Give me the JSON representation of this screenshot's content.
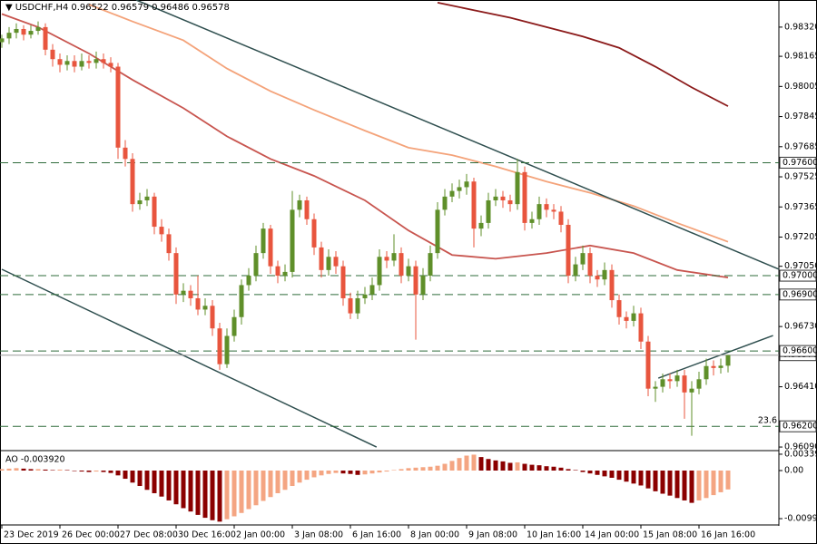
{
  "chart_data": [
    {
      "type": "candlestick",
      "title": "USDCHF,H4",
      "bull_color": "#5f8f2a",
      "bear_color": "#e8553e",
      "xlim": [
        -0.25,
        107
      ],
      "xticks": [
        {
          "value": 0,
          "label": "23 Dec 2019"
        },
        {
          "value": 8,
          "label": "26 Dec 00:00"
        },
        {
          "value": 16,
          "label": "27 Dec 08:00"
        },
        {
          "value": 24,
          "label": "30 Dec 16:00"
        },
        {
          "value": 32,
          "label": "2 Jan 00:00"
        },
        {
          "value": 40,
          "label": "3 Jan 08:00"
        },
        {
          "value": 48,
          "label": "6 Jan 16:00"
        },
        {
          "value": 56,
          "label": "8 Jan 00:00"
        },
        {
          "value": 64,
          "label": "9 Jan 08:00"
        },
        {
          "value": 72,
          "label": "10 Jan 16:00"
        },
        {
          "value": 80,
          "label": "14 Jan 00:00"
        },
        {
          "value": 88,
          "label": "15 Jan 08:00"
        },
        {
          "value": 96,
          "label": "16 Jan 16:00"
        }
      ],
      "ylim": [
        0.96071,
        0.98464
      ],
      "yticks": [
        {
          "value": 0.9832,
          "label": "0.98320"
        },
        {
          "value": 0.98165,
          "label": "0.98165"
        },
        {
          "value": 0.98005,
          "label": "0.98005"
        },
        {
          "value": 0.97845,
          "label": "0.97845"
        },
        {
          "value": 0.97685,
          "label": "0.97685"
        },
        {
          "value": 0.97525,
          "label": "0.97525"
        },
        {
          "value": 0.97365,
          "label": "0.97365"
        },
        {
          "value": 0.97205,
          "label": "0.97205"
        },
        {
          "value": 0.9705,
          "label": "0.97050"
        },
        {
          "value": 0.9673,
          "label": "0.96730"
        },
        {
          "value": 0.9641,
          "label": "0.96410"
        },
        {
          "value": 0.9609,
          "label": "0.96090"
        }
      ],
      "open": [
        0.9824,
        0.9826,
        0.9829,
        0.9831,
        0.9828,
        0.983,
        0.9832,
        0.982,
        0.9815,
        0.9812,
        0.9814,
        0.9811,
        0.9814,
        0.9813,
        0.9815,
        0.9813,
        0.9811,
        0.9768,
        0.9762,
        0.9738,
        0.974,
        0.9742,
        0.9726,
        0.9722,
        0.9712,
        0.969,
        0.9692,
        0.9688,
        0.9682,
        0.9684,
        0.9672,
        0.9653,
        0.9668,
        0.9678,
        0.9695,
        0.97,
        0.9712,
        0.9725,
        0.9705,
        0.97,
        0.9702,
        0.9735,
        0.974,
        0.973,
        0.9715,
        0.9703,
        0.971,
        0.9705,
        0.9688,
        0.968,
        0.9688,
        0.969,
        0.9695,
        0.971,
        0.9708,
        0.9712,
        0.97,
        0.9705,
        0.969,
        0.97,
        0.9712,
        0.9735,
        0.9742,
        0.9745,
        0.9747,
        0.975,
        0.9725,
        0.9728,
        0.974,
        0.9742,
        0.974,
        0.9738,
        0.9755,
        0.9728,
        0.973,
        0.9738,
        0.9735,
        0.9734,
        0.9727,
        0.97,
        0.9706,
        0.9712,
        0.97,
        0.9698,
        0.9703,
        0.9687,
        0.9678,
        0.9676,
        0.968,
        0.9665,
        0.964,
        0.9641,
        0.9645,
        0.9644,
        0.9647,
        0.9638,
        0.964,
        0.9645,
        0.9652,
        0.9651,
        0.96522
      ],
      "high": [
        0.9828,
        0.9832,
        0.9834,
        0.9833,
        0.9833,
        0.9835,
        0.9834,
        0.9823,
        0.9818,
        0.9817,
        0.9817,
        0.9818,
        0.9817,
        0.9819,
        0.9818,
        0.9816,
        0.9813,
        0.9772,
        0.9765,
        0.9744,
        0.9746,
        0.9744,
        0.973,
        0.9725,
        0.9715,
        0.9696,
        0.9695,
        0.97,
        0.9688,
        0.9687,
        0.9675,
        0.9672,
        0.9682,
        0.9698,
        0.9704,
        0.9716,
        0.9728,
        0.9727,
        0.9708,
        0.9706,
        0.9745,
        0.9743,
        0.9742,
        0.9733,
        0.9718,
        0.9714,
        0.9713,
        0.9708,
        0.9691,
        0.9692,
        0.9694,
        0.9699,
        0.9714,
        0.9713,
        0.9722,
        0.9715,
        0.9709,
        0.9708,
        0.9704,
        0.9716,
        0.9739,
        0.9746,
        0.9749,
        0.9751,
        0.9754,
        0.9752,
        0.9732,
        0.9744,
        0.9746,
        0.9745,
        0.9743,
        0.9762,
        0.9758,
        0.9734,
        0.9742,
        0.9741,
        0.9738,
        0.9737,
        0.973,
        0.971,
        0.9716,
        0.9715,
        0.9703,
        0.9707,
        0.9706,
        0.969,
        0.9681,
        0.9684,
        0.9683,
        0.9668,
        0.9644,
        0.9648,
        0.9648,
        0.965,
        0.965,
        0.9644,
        0.9649,
        0.9656,
        0.9655,
        0.9656,
        0.96579
      ],
      "low": [
        0.9821,
        0.9823,
        0.9826,
        0.9825,
        0.9826,
        0.9828,
        0.9817,
        0.9811,
        0.9808,
        0.9809,
        0.9808,
        0.9809,
        0.981,
        0.981,
        0.981,
        0.9808,
        0.9762,
        0.9758,
        0.9734,
        0.9735,
        0.9737,
        0.9722,
        0.9718,
        0.9708,
        0.9685,
        0.9686,
        0.9684,
        0.9679,
        0.9679,
        0.9668,
        0.965,
        0.9651,
        0.9665,
        0.9674,
        0.9692,
        0.9697,
        0.9709,
        0.9701,
        0.9696,
        0.9697,
        0.9699,
        0.9731,
        0.9727,
        0.9711,
        0.9699,
        0.97,
        0.9701,
        0.9684,
        0.9677,
        0.9677,
        0.9685,
        0.9687,
        0.9692,
        0.9704,
        0.9705,
        0.9696,
        0.9697,
        0.9666,
        0.9687,
        0.9697,
        0.9709,
        0.9732,
        0.9739,
        0.9741,
        0.9743,
        0.9715,
        0.9721,
        0.9725,
        0.9737,
        0.9736,
        0.9734,
        0.9735,
        0.9724,
        0.9725,
        0.9727,
        0.9731,
        0.973,
        0.9723,
        0.9696,
        0.9697,
        0.9703,
        0.9696,
        0.9694,
        0.9695,
        0.9683,
        0.9674,
        0.9672,
        0.9673,
        0.9661,
        0.9636,
        0.9633,
        0.9638,
        0.964,
        0.9641,
        0.9624,
        0.9615,
        0.9637,
        0.9642,
        0.9647,
        0.9648,
        0.96486
      ],
      "close": [
        0.9826,
        0.9829,
        0.9831,
        0.9828,
        0.983,
        0.9832,
        0.982,
        0.9815,
        0.9812,
        0.9814,
        0.9811,
        0.9814,
        0.9813,
        0.9815,
        0.9813,
        0.9811,
        0.9768,
        0.9762,
        0.9738,
        0.974,
        0.9742,
        0.9726,
        0.9722,
        0.9712,
        0.969,
        0.9692,
        0.9688,
        0.9682,
        0.9684,
        0.9672,
        0.9653,
        0.9668,
        0.9678,
        0.9695,
        0.97,
        0.9712,
        0.9725,
        0.9705,
        0.97,
        0.9702,
        0.9735,
        0.974,
        0.973,
        0.9715,
        0.9703,
        0.971,
        0.9705,
        0.9688,
        0.968,
        0.9688,
        0.969,
        0.9695,
        0.971,
        0.9708,
        0.9712,
        0.97,
        0.9705,
        0.969,
        0.97,
        0.9712,
        0.9735,
        0.9742,
        0.9745,
        0.9747,
        0.975,
        0.9725,
        0.9728,
        0.974,
        0.9742,
        0.974,
        0.9738,
        0.9755,
        0.9728,
        0.973,
        0.9738,
        0.9735,
        0.9734,
        0.9727,
        0.97,
        0.9706,
        0.9712,
        0.97,
        0.9698,
        0.9703,
        0.9687,
        0.9678,
        0.9676,
        0.968,
        0.9665,
        0.964,
        0.9641,
        0.9645,
        0.9644,
        0.9647,
        0.9638,
        0.964,
        0.9645,
        0.9652,
        0.9651,
        0.96522,
        0.96578
      ],
      "moving_averages": [
        {
          "color": "#8b1a1a",
          "x": [
            60,
            65,
            70,
            75,
            80,
            85,
            90,
            95,
            100
          ],
          "values": [
            0.9845,
            0.9841,
            0.9837,
            0.9832,
            0.9827,
            0.9821,
            0.9811,
            0.98,
            0.979
          ]
        },
        {
          "color": "#f4a37a",
          "x": [
            12,
            18,
            25,
            31,
            37,
            43,
            50,
            56,
            62,
            68,
            75,
            81,
            87,
            93,
            100
          ],
          "values": [
            0.9844,
            0.9835,
            0.9825,
            0.981,
            0.9798,
            0.9788,
            0.9777,
            0.9768,
            0.9764,
            0.9758,
            0.975,
            0.9744,
            0.9737,
            0.9728,
            0.9718
          ]
        },
        {
          "color": "#c8554f",
          "x": [
            0,
            5,
            12,
            18,
            25,
            31,
            37,
            43,
            50,
            56,
            62,
            68,
            75,
            81,
            87,
            93,
            100
          ],
          "values": [
            0.9839,
            0.9832,
            0.9818,
            0.9804,
            0.9789,
            0.9774,
            0.9762,
            0.9753,
            0.974,
            0.9724,
            0.9711,
            0.9709,
            0.9712,
            0.9716,
            0.9712,
            0.9703,
            0.9699
          ]
        }
      ],
      "trendlines": [
        {
          "color": "#2f4f4f",
          "x": [
            18.5,
            107
          ],
          "values": [
            0.98464,
            0.97034
          ]
        },
        {
          "color": "#2f4f4f",
          "x": [
            0,
            51.6
          ],
          "values": [
            0.97034,
            0.9609
          ]
        },
        {
          "color": "#2f4f4f",
          "x": [
            90.4,
            106.2
          ],
          "values": [
            0.96456,
            0.96682
          ]
        }
      ],
      "level_color": "#2e6b3a",
      "levels": [
        {
          "value": 0.976,
          "label": "0.97600"
        },
        {
          "value": 0.97,
          "label": "0.97000"
        },
        {
          "value": 0.969,
          "label": "0.96900"
        },
        {
          "value": 0.966,
          "label": "0.96600"
        },
        {
          "value": 0.962,
          "label": "0.96200"
        }
      ],
      "current_price": 0.96578,
      "annotations": [
        {
          "text": "23.6"
        }
      ]
    },
    {
      "type": "bar",
      "title": "AO -0.003920",
      "up_color": "#f4a582",
      "down_color": "#8b0000",
      "ylim": [
        -0.0111,
        0.00395
      ],
      "yticks": [
        0.003393,
        {
          "value": 0,
          "label": "0.00"
        },
        -0.009977
      ],
      "values": [
        0.0003,
        0.0004,
        0.0005,
        0.0004,
        0.0003,
        0.0003,
        0.0002,
        0.0001,
        0.0002,
        0.0001,
        -0.0001,
        -0.0002,
        -0.0003,
        -0.0002,
        -0.0003,
        -0.0005,
        -0.001,
        -0.0017,
        -0.0025,
        -0.0032,
        -0.004,
        -0.0047,
        -0.0054,
        -0.0062,
        -0.007,
        -0.0078,
        -0.0085,
        -0.0092,
        -0.0098,
        -0.0103,
        -0.0106,
        -0.0101,
        -0.0095,
        -0.0088,
        -0.008,
        -0.0072,
        -0.0063,
        -0.0055,
        -0.0047,
        -0.004,
        -0.0032,
        -0.0025,
        -0.0019,
        -0.0014,
        -0.001,
        -0.0007,
        -0.0005,
        -0.0006,
        -0.0007,
        -0.0009,
        -0.0008,
        -0.0006,
        -0.0004,
        -0.0002,
        0.0001,
        0.0003,
        0.0005,
        0.0006,
        0.0007,
        0.0008,
        0.001,
        0.0014,
        0.002,
        0.0026,
        0.0031,
        0.0033,
        0.0028,
        0.0024,
        0.0021,
        0.0019,
        0.0016,
        0.0017,
        0.0014,
        0.0012,
        0.0011,
        0.0009,
        0.0008,
        0.0006,
        0.0003,
        0.0001,
        -0.0003,
        -0.0006,
        -0.0009,
        -0.0012,
        -0.0015,
        -0.0019,
        -0.0023,
        -0.0027,
        -0.0031,
        -0.0037,
        -0.0043,
        -0.0048,
        -0.0052,
        -0.0057,
        -0.0062,
        -0.0067,
        -0.0062,
        -0.0057,
        -0.0051,
        -0.0045,
        -0.00392
      ]
    }
  ]
}
